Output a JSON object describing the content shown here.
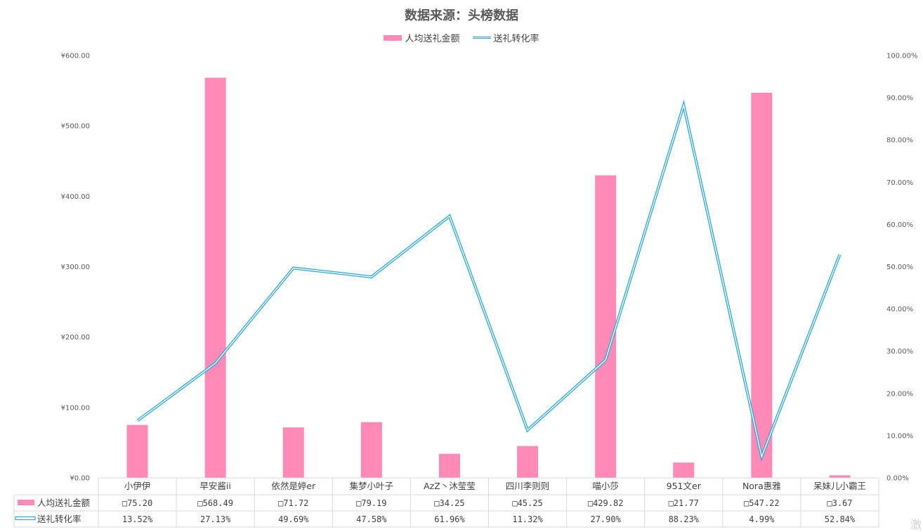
{
  "chart_data": {
    "type": "bar",
    "title": "数据来源：头榜数据",
    "categories": [
      "小伊伊",
      "早安酱ii",
      "依然是婷er",
      "集梦小叶子",
      "AzZ丶沐莹莹",
      "四川李则则",
      "喵小莎",
      "951文er",
      "Nora惠雅",
      "呆妹儿小霸王"
    ],
    "series": [
      {
        "name": "人均送礼金额",
        "kind": "bar",
        "axis": "left",
        "color": "#FF8AB8",
        "values": [
          75.2,
          568.49,
          71.72,
          79.19,
          34.25,
          45.25,
          429.82,
          21.77,
          547.22,
          3.67
        ],
        "labels": [
          "75.20",
          "568.49",
          "71.72",
          "79.19",
          "34.25",
          "45.25",
          "429.82",
          "21.77",
          "547.22",
          "3.67"
        ],
        "label_prefix": "□"
      },
      {
        "name": "送礼转化率",
        "kind": "line",
        "axis": "right",
        "color": "#29A8D8",
        "values": [
          13.52,
          27.13,
          49.69,
          47.58,
          61.96,
          11.32,
          27.9,
          88.23,
          4.99,
          52.84
        ],
        "labels": [
          "13.52%",
          "27.13%",
          "49.69%",
          "47.58%",
          "61.96%",
          "11.32%",
          "27.90%",
          "88.23%",
          "4.99%",
          "52.84%"
        ]
      }
    ],
    "y_left": {
      "ylim": [
        0,
        600
      ],
      "ticks": [
        "¥0.00",
        "¥100.00",
        "¥200.00",
        "¥300.00",
        "¥400.00",
        "¥500.00",
        "¥600.00"
      ]
    },
    "y_right": {
      "ylim": [
        0,
        100
      ],
      "ticks": [
        "0.00%",
        "10.00%",
        "20.00%",
        "30.00%",
        "40.00%",
        "50.00%",
        "60.00%",
        "70.00%",
        "80.00%",
        "90.00%",
        "100.00%"
      ]
    },
    "legend_position": "top",
    "grid": false,
    "data_table": true
  },
  "watermark": "激"
}
